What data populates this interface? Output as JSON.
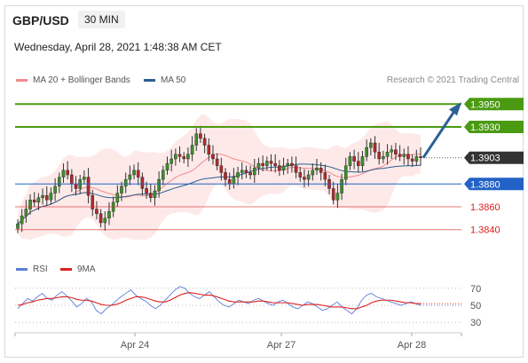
{
  "header": {
    "pair": "GBP/USD",
    "timeframe": "30 MIN",
    "datetime": "Wednesday, April 28, 2021 1:48:38 AM CET"
  },
  "legend": {
    "ma20": "MA 20 + Bollinger Bands",
    "ma50": "MA 50",
    "ma20_color": "#f28b8b",
    "ma50_color": "#2b5f8e"
  },
  "research": "Research © 2021 Trading Central",
  "rsi_legend": {
    "rsi": "RSI",
    "ma9": "9MA",
    "rsi_color": "#5b7fd6",
    "ma9_color": "#e02020"
  },
  "chart_data": [
    {
      "type": "candlestick",
      "ylim": [
        1.3825,
        1.3965
      ],
      "x_ticks": [
        "Apr 24",
        "Apr 27",
        "Apr 28"
      ],
      "levels": [
        {
          "price": "1.3950",
          "value": 1.395,
          "kind": "resistance",
          "color": "#4a9a12"
        },
        {
          "price": "1.3930",
          "value": 1.393,
          "kind": "resistance",
          "color": "#4a9a12"
        },
        {
          "price": "1.3903",
          "value": 1.3903,
          "kind": "current",
          "color": "#333333"
        },
        {
          "price": "1.3880",
          "value": 1.388,
          "kind": "pivot",
          "color": "#2262c6"
        },
        {
          "price": "1.3860",
          "value": 1.386,
          "kind": "support",
          "color": "#d92020"
        },
        {
          "price": "1.3840",
          "value": 1.384,
          "kind": "support",
          "color": "#d92020"
        }
      ],
      "projection": {
        "from": 1.3903,
        "to": 1.395,
        "direction": "up"
      },
      "close_series": [
        1.3845,
        1.3852,
        1.3858,
        1.3866,
        1.3864,
        1.3868,
        1.387,
        1.3866,
        1.3872,
        1.3878,
        1.3886,
        1.3892,
        1.3888,
        1.388,
        1.3876,
        1.3884,
        1.3886,
        1.387,
        1.3858,
        1.3854,
        1.3846,
        1.385,
        1.3856,
        1.3864,
        1.3872,
        1.3878,
        1.3884,
        1.3888,
        1.3892,
        1.3886,
        1.3876,
        1.3872,
        1.3868,
        1.3874,
        1.3884,
        1.3892,
        1.3898,
        1.3902,
        1.3906,
        1.3904,
        1.3902,
        1.3906,
        1.3914,
        1.3924,
        1.392,
        1.3914,
        1.3906,
        1.3902,
        1.3896,
        1.389,
        1.3884,
        1.388,
        1.3886,
        1.389,
        1.3892,
        1.389,
        1.3888,
        1.3894,
        1.3898,
        1.3896,
        1.39,
        1.3898,
        1.3896,
        1.3892,
        1.3896,
        1.3898,
        1.3896,
        1.389,
        1.3886,
        1.3884,
        1.3888,
        1.3892,
        1.3894,
        1.389,
        1.3884,
        1.3876,
        1.3866,
        1.3872,
        1.3884,
        1.3896,
        1.3904,
        1.39,
        1.3896,
        1.3904,
        1.3912,
        1.3916,
        1.3908,
        1.3902,
        1.3904,
        1.3908,
        1.391,
        1.3906,
        1.3904,
        1.3906,
        1.3902,
        1.39,
        1.3904,
        1.3903
      ]
    },
    {
      "type": "line",
      "title": "RSI",
      "ylim": [
        25,
        75
      ],
      "y_ticks": [
        70,
        50,
        30
      ],
      "series": [
        {
          "name": "RSI",
          "values": [
            46,
            52,
            58,
            55,
            60,
            64,
            58,
            56,
            62,
            66,
            61,
            55,
            48,
            52,
            58,
            54,
            44,
            40,
            46,
            50,
            55,
            60,
            64,
            68,
            62,
            58,
            55,
            50,
            46,
            50,
            56,
            62,
            68,
            72,
            70,
            64,
            60,
            58,
            62,
            66,
            60,
            54,
            50,
            48,
            52,
            56,
            54,
            52,
            56,
            58,
            55,
            52,
            50,
            54,
            56,
            52,
            48,
            46,
            50,
            54,
            52,
            48,
            44,
            46,
            50,
            54,
            48,
            44,
            40,
            46,
            56,
            62,
            64,
            60,
            58,
            56,
            54,
            52,
            50,
            52,
            54,
            52,
            50
          ]
        },
        {
          "name": "9MA",
          "values": [
            50,
            51,
            53,
            54,
            56,
            57,
            58,
            58,
            59,
            60,
            60,
            59,
            57,
            56,
            56,
            55,
            53,
            51,
            50,
            50,
            51,
            53,
            56,
            58,
            60,
            60,
            59,
            57,
            55,
            54,
            54,
            56,
            59,
            62,
            64,
            65,
            64,
            63,
            62,
            62,
            61,
            59,
            57,
            55,
            54,
            54,
            54,
            54,
            54,
            55,
            55,
            54,
            53,
            53,
            53,
            53,
            52,
            51,
            50,
            51,
            51,
            51,
            50,
            49,
            48,
            48,
            48,
            47,
            46,
            46,
            48,
            50,
            53,
            55,
            56,
            56,
            56,
            55,
            54,
            53,
            53,
            52,
            52
          ]
        }
      ]
    }
  ]
}
